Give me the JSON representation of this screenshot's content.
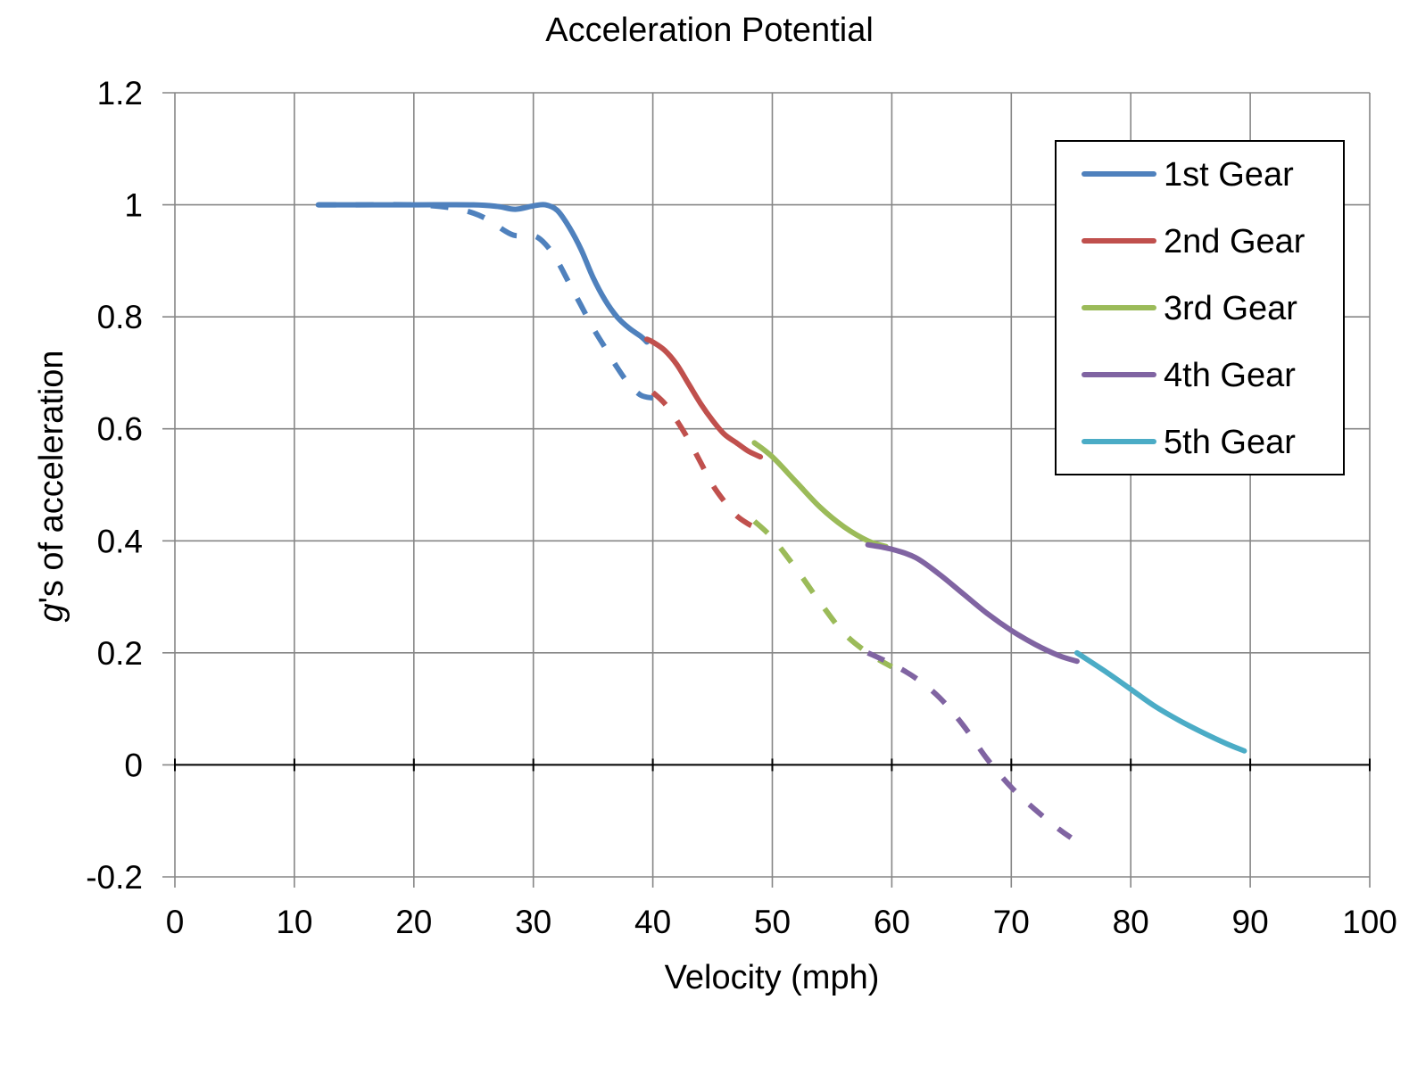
{
  "chart_data": {
    "type": "line",
    "title": "Acceleration Potential",
    "xlabel": "Velocity (mph)",
    "ylabel_italic": "g",
    "ylabel_rest": "'s of acceleration",
    "xlim": [
      0,
      100
    ],
    "ylim": [
      -0.2,
      1.2
    ],
    "x_ticks": [
      0,
      10,
      20,
      30,
      40,
      50,
      60,
      70,
      80,
      90,
      100
    ],
    "x_tick_labels": [
      "0",
      "10",
      "20",
      "30",
      "40",
      "50",
      "60",
      "70",
      "80",
      "90",
      "100"
    ],
    "y_ticks": [
      -0.2,
      0,
      0.2,
      0.4,
      0.6,
      0.8,
      1,
      1.2
    ],
    "y_tick_labels": [
      "-0.2",
      "0",
      "0.2",
      "0.4",
      "0.6",
      "0.8",
      "1",
      "1.2"
    ],
    "grid": true,
    "legend_position": "top-right",
    "series": [
      {
        "name": "1st Gear",
        "color": "#4F81BD",
        "style": "solid",
        "x": [
          12,
          15,
          20,
          25,
          27,
          28.5,
          30,
          31,
          32,
          33,
          34,
          35,
          36,
          37,
          38,
          39,
          39.5
        ],
        "y": [
          1.0,
          1.0,
          1.0,
          1.0,
          0.997,
          0.992,
          0.998,
          1.0,
          0.99,
          0.96,
          0.92,
          0.87,
          0.83,
          0.8,
          0.78,
          0.765,
          0.755
        ]
      },
      {
        "name": "1st Gear (dashed)",
        "color": "#4F81BD",
        "style": "dashed",
        "x": [
          12,
          15,
          20,
          23,
          25,
          26.5,
          27.5,
          28.5,
          30,
          31,
          32,
          33,
          34,
          35,
          36,
          37,
          38,
          39,
          40
        ],
        "y": [
          1.0,
          1.0,
          1.0,
          0.995,
          0.985,
          0.97,
          0.955,
          0.945,
          0.945,
          0.93,
          0.9,
          0.86,
          0.82,
          0.78,
          0.745,
          0.71,
          0.68,
          0.66,
          0.655
        ]
      },
      {
        "name": "2nd Gear",
        "color": "#C0504D",
        "style": "solid",
        "x": [
          39.5,
          40,
          41,
          42,
          43,
          44,
          45,
          46,
          47,
          48,
          49
        ],
        "y": [
          0.76,
          0.755,
          0.74,
          0.715,
          0.68,
          0.645,
          0.615,
          0.59,
          0.575,
          0.56,
          0.55
        ]
      },
      {
        "name": "2nd Gear (dashed)",
        "color": "#C0504D",
        "style": "dashed",
        "x": [
          40,
          41,
          42,
          43,
          44,
          45,
          46,
          47,
          48,
          48.5
        ],
        "y": [
          0.665,
          0.645,
          0.615,
          0.58,
          0.54,
          0.5,
          0.47,
          0.445,
          0.43,
          0.425
        ]
      },
      {
        "name": "3rd Gear",
        "color": "#9BBB59",
        "style": "solid",
        "x": [
          48.5,
          50,
          52,
          54,
          56,
          58,
          59.5
        ],
        "y": [
          0.575,
          0.55,
          0.505,
          0.46,
          0.425,
          0.4,
          0.39
        ]
      },
      {
        "name": "3rd Gear (dashed)",
        "color": "#9BBB59",
        "style": "dashed",
        "x": [
          48.5,
          50,
          52,
          54,
          56,
          58,
          60
        ],
        "y": [
          0.435,
          0.405,
          0.35,
          0.29,
          0.235,
          0.2,
          0.175
        ]
      },
      {
        "name": "4th Gear",
        "color": "#8064A2",
        "style": "solid",
        "x": [
          58,
          60,
          62,
          64,
          66,
          68,
          70,
          72,
          74,
          75.5
        ],
        "y": [
          0.393,
          0.385,
          0.37,
          0.34,
          0.305,
          0.27,
          0.24,
          0.215,
          0.195,
          0.185
        ]
      },
      {
        "name": "4th Gear (dashed)",
        "color": "#8064A2",
        "style": "dashed",
        "x": [
          58,
          60,
          62,
          64,
          66,
          68,
          70,
          72,
          74,
          75
        ],
        "y": [
          0.2,
          0.18,
          0.155,
          0.12,
          0.07,
          0.01,
          -0.04,
          -0.08,
          -0.115,
          -0.13
        ]
      },
      {
        "name": "5th Gear",
        "color": "#4BACC6",
        "style": "solid",
        "x": [
          75.5,
          78,
          80,
          82,
          84,
          86,
          88,
          89.5
        ],
        "y": [
          0.2,
          0.165,
          0.135,
          0.105,
          0.08,
          0.058,
          0.038,
          0.025
        ]
      }
    ],
    "legend": [
      {
        "label": "1st Gear",
        "color": "#4F81BD"
      },
      {
        "label": "2nd Gear",
        "color": "#C0504D"
      },
      {
        "label": "3rd Gear",
        "color": "#9BBB59"
      },
      {
        "label": "4th Gear",
        "color": "#8064A2"
      },
      {
        "label": "5th Gear",
        "color": "#4BACC6"
      }
    ]
  }
}
